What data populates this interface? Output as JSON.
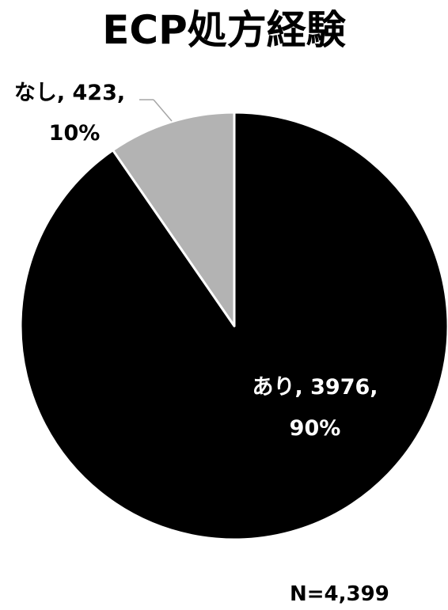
{
  "chart_data": {
    "type": "pie",
    "title": "ECP処方経験",
    "slices": [
      {
        "name": "あり",
        "value": 3976,
        "percent": "90%",
        "label_line1": "あり, 3976,",
        "label_line2": "90%",
        "color": "#000000",
        "label_color": "#ffffff"
      },
      {
        "name": "なし",
        "value": 423,
        "percent": "10%",
        "label_line1": "なし, 423,",
        "label_line2": "10%",
        "color": "#b3b3b3",
        "label_color": "#000000"
      }
    ],
    "start_angle_deg": 0,
    "direction": "clockwise",
    "slice_border_color": "#ffffff",
    "note": "N=4,399"
  }
}
